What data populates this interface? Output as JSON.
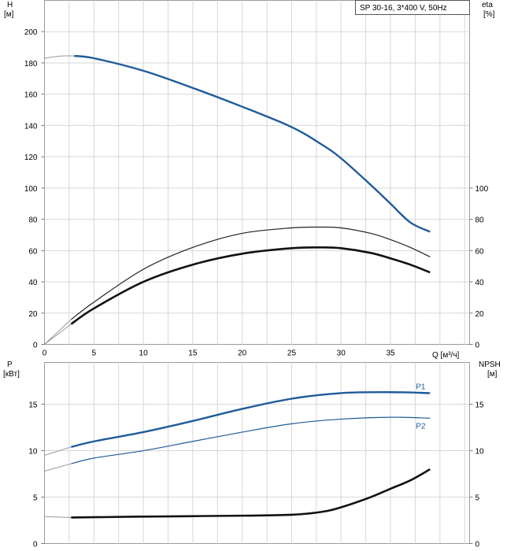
{
  "chart_data": [
    {
      "type": "line",
      "title_box": "SP 30-16, 3*400 V, 50Hz",
      "y_left_label": "H",
      "y_left_unit": "[м]",
      "y_right_label": "eta",
      "y_right_unit": "[%]",
      "x_label": "Q [м³/ч]",
      "xlim": [
        0,
        43
      ],
      "x_ticks": [
        0,
        5,
        10,
        15,
        20,
        25,
        30,
        35
      ],
      "y_left_lim": [
        0,
        220
      ],
      "y_left_ticks": [
        0,
        20,
        40,
        60,
        80,
        100,
        120,
        140,
        160,
        180,
        200
      ],
      "y_right_ticks": [
        0,
        20,
        40,
        60,
        80,
        100
      ],
      "grid": true,
      "series": [
        {
          "key": "H",
          "color": "#1f5b99",
          "width": 2.4,
          "x": [
            0,
            1,
            2,
            3,
            5,
            10,
            15,
            20,
            25,
            28,
            30,
            33,
            35,
            37,
            39
          ],
          "y": [
            183,
            184,
            184.5,
            184.5,
            183,
            175,
            164,
            152,
            139,
            128,
            119,
            102,
            90,
            78,
            72
          ],
          "extrap_to": 2.7
        },
        {
          "key": "eta_thin",
          "color": "#222222",
          "width": 1.2,
          "x": [
            0,
            2.7,
            5,
            10,
            15,
            20,
            25,
            28,
            30,
            33,
            35,
            37,
            39
          ],
          "y": [
            0,
            16,
            27,
            48,
            62,
            71,
            74.5,
            75,
            74.5,
            71,
            67,
            62,
            56
          ],
          "extrap_to": 2.7
        },
        {
          "key": "eta_thick",
          "color": "#111111",
          "width": 2.6,
          "x": [
            0,
            2.7,
            5,
            10,
            15,
            20,
            25,
            28,
            30,
            33,
            35,
            37,
            39
          ],
          "y": [
            0,
            13,
            23,
            40,
            51,
            58,
            61.5,
            62,
            61.5,
            58.5,
            55,
            51,
            46
          ],
          "extrap_to": 2.7
        }
      ]
    },
    {
      "type": "line",
      "y_left_label": "P",
      "y_left_unit": "[кВт]",
      "y_right_label": "NPSH",
      "y_right_unit": "[м]",
      "xlim": [
        0,
        43
      ],
      "x_ticks": [
        0,
        5,
        10,
        15,
        20,
        25,
        30,
        35
      ],
      "y_left_lim": [
        0,
        19.5
      ],
      "y_left_ticks": [
        0,
        5,
        10,
        15
      ],
      "y_right_ticks": [
        0,
        5,
        10,
        15
      ],
      "grid": true,
      "series": [
        {
          "key": "P1",
          "name": "P1",
          "color": "#1f5b99",
          "width": 2.4,
          "x": [
            0,
            2.7,
            5,
            10,
            15,
            20,
            25,
            30,
            35,
            39
          ],
          "y": [
            9.5,
            10.4,
            11.0,
            12.0,
            13.2,
            14.5,
            15.6,
            16.2,
            16.3,
            16.2
          ],
          "extrap_to": 2.7
        },
        {
          "key": "P2",
          "name": "P2",
          "color": "#1f5b99",
          "width": 1.2,
          "x": [
            0,
            2.7,
            5,
            10,
            15,
            20,
            25,
            30,
            35,
            39
          ],
          "y": [
            7.8,
            8.6,
            9.2,
            10.0,
            11.0,
            12.0,
            12.9,
            13.4,
            13.6,
            13.5
          ],
          "extrap_to": 2.7
        },
        {
          "key": "NPSH",
          "color": "#111111",
          "width": 2.6,
          "x": [
            0,
            2.7,
            10,
            20,
            25,
            28,
            30,
            33,
            35,
            37,
            39
          ],
          "y": [
            2.9,
            2.8,
            2.9,
            3.0,
            3.1,
            3.4,
            3.9,
            5.0,
            5.9,
            6.8,
            8.0
          ],
          "extrap_to": 2.7
        }
      ]
    }
  ]
}
